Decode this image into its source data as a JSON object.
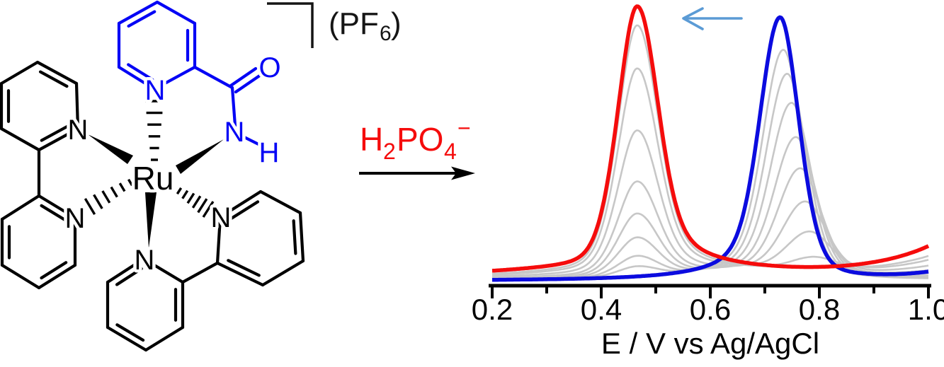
{
  "figure": {
    "background": "#ffffff"
  },
  "molecule": {
    "atom_labels": {
      "ru": "Ru",
      "n": "N",
      "o": "O",
      "h": "H"
    },
    "counterion": {
      "open_paren_pf": "(PF",
      "subscript": "6",
      "close_paren": ")"
    },
    "colors": {
      "black_ligand": "#000000",
      "blue_ligand": "#0505f5"
    }
  },
  "reaction": {
    "reagent_parts": {
      "h": "H",
      "sub2": "2",
      "po": "PO",
      "sub4": "4",
      "minus": "−"
    },
    "reagent_color": "#f50c0c"
  },
  "chart_data": {
    "type": "line",
    "title": "",
    "xlabel": "E / V vs Ag/AgCl",
    "ylabel": "",
    "xlim": [
      0.2,
      1.0
    ],
    "x_major_ticks": [
      0.2,
      0.4,
      0.6,
      0.8,
      1.0
    ],
    "x_tick_labels": [
      "0.2",
      "0.4",
      "0.6",
      "0.8",
      "1.0"
    ],
    "x_minor_ticks": [
      0.3,
      0.5,
      0.7,
      0.9
    ],
    "grid": false,
    "legend": "none",
    "peaks": {
      "initial_peak_V": 0.73,
      "final_peak_V": 0.47,
      "shift_direction": "negative"
    },
    "curves": {
      "final": {
        "name": "with H2PO4-",
        "color": "#f50c0c",
        "center": 0.466,
        "amp": 0.97,
        "sg": 0.036,
        "wl": 0.042,
        "wr": 0.07,
        "base": 0.018,
        "broad": [
          0.035,
          0.42,
          0.26
        ],
        "tail": [
          0.115,
          0.12
        ]
      },
      "initial": {
        "name": "initial",
        "color": "#0b0bdf",
        "center": 0.728,
        "amp": 0.97,
        "sg": 0.035,
        "wl": 0.065,
        "wr": 0.042,
        "base": 0.012,
        "tail": [
          0.028,
          0.09
        ]
      },
      "intermediates_color": "#c7c7c7",
      "intermediates": [
        {
          "amp_final": 0.04,
          "amp_initial": 0.85,
          "initial_center": 0.734
        },
        {
          "amp_final": 0.08,
          "amp_initial": 0.76,
          "initial_center": 0.741
        },
        {
          "amp_final": 0.15,
          "amp_initial": 0.65,
          "initial_center": 0.749
        },
        {
          "amp_final": 0.24,
          "amp_initial": 0.52,
          "initial_center": 0.757
        },
        {
          "amp_final": 0.36,
          "amp_initial": 0.4,
          "initial_center": 0.765
        },
        {
          "amp_final": 0.55,
          "amp_initial": 0.27,
          "initial_center": 0.774
        },
        {
          "amp_final": 0.78,
          "amp_initial": 0.15,
          "initial_center": 0.782
        },
        {
          "amp_final": 0.94,
          "amp_initial": 0.05,
          "initial_center": 0.79
        }
      ]
    },
    "shift_arrow": {
      "direction": "left",
      "color": "#5b9bd5"
    }
  }
}
